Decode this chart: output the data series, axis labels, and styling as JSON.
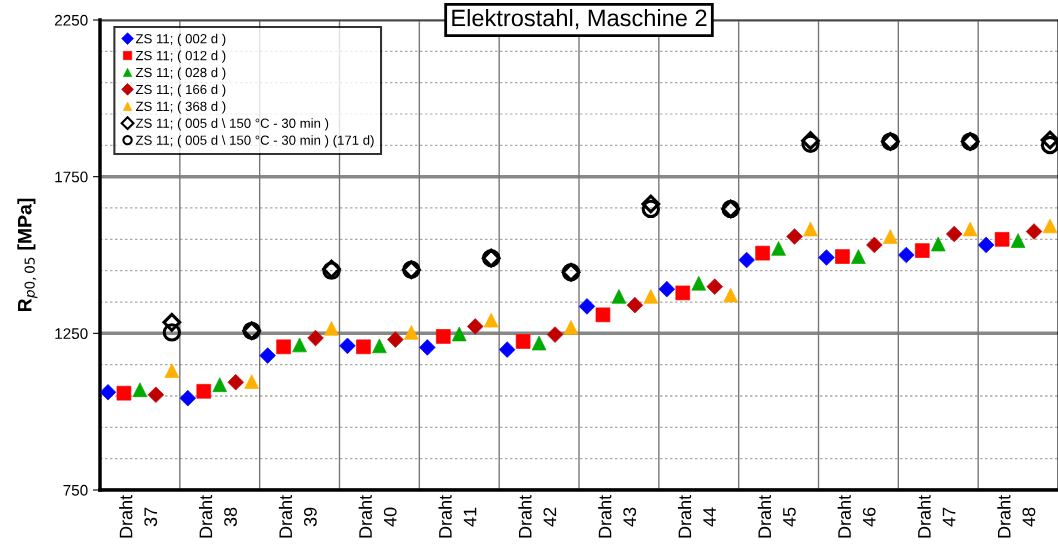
{
  "chart_data": {
    "type": "scatter",
    "title": "Elektrostahl, Maschine 2",
    "ylabel": "R$_{p0,05}$ [MPa]",
    "categories": [
      "Draht\n37",
      "Draht\n38",
      "Draht\n39",
      "Draht\n40",
      "Draht\n41",
      "Draht\n42",
      "Draht\n43",
      "Draht\n44",
      "Draht\n45",
      "Draht\n46",
      "Draht\n47",
      "Draht\n48"
    ],
    "ylim": [
      750,
      2250
    ],
    "yticks": [
      750,
      {
        "value": 850,
        "label": null
      },
      {
        "value": 950,
        "label": null
      },
      {
        "value": 1050,
        "label": null
      },
      {
        "value": 1150,
        "label": null
      },
      1250,
      {
        "value": 1350,
        "label": null
      },
      {
        "value": 1450,
        "label": null
      },
      {
        "value": 1550,
        "label": null
      },
      {
        "value": 1650,
        "label": null
      },
      1750,
      {
        "value": 1850,
        "label": null
      },
      {
        "value": 1950,
        "label": null
      },
      {
        "value": 2050,
        "label": null
      },
      {
        "value": 2150,
        "label": null
      },
      2250
    ],
    "grid": true,
    "legend": "top left",
    "series": [
      {
        "name": "ZS 11; ( 002 d )",
        "color": "#0000ff",
        "marker": "diamond",
        "values": [
          1062,
          1043,
          1179,
          1210,
          1205,
          1198,
          1336,
          1391,
          1484,
          1492,
          1500,
          1532
        ]
      },
      {
        "name": "ZS 11; ( 012 d )",
        "color": "#ff0000",
        "marker": "square",
        "values": [
          1059,
          1065,
          1207,
          1207,
          1240,
          1224,
          1309,
          1379,
          1506,
          1495,
          1514,
          1550
        ]
      },
      {
        "name": "ZS 11; ( 028 d )",
        "color": "#00aa00",
        "marker": "triangle",
        "values": [
          1070,
          1086,
          1213,
          1210,
          1248,
          1219,
          1368,
          1410,
          1521,
          1495,
          1535,
          1546
        ]
      },
      {
        "name": "ZS 11; ( 166 d )",
        "color": "#c00000",
        "marker": "diamond",
        "values": [
          1054,
          1094,
          1235,
          1230,
          1272,
          1246,
          1340,
          1399,
          1559,
          1532,
          1567,
          1575
        ]
      },
      {
        "name": "ZS 11; ( 368 d )",
        "color": "#ffb000",
        "marker": "triangle",
        "values": [
          1131,
          1096,
          1266,
          1253,
          1292,
          1269,
          1368,
          1372,
          1583,
          1559,
          1583,
          1593
        ]
      },
      {
        "name": "ZS 11; ( 005 d \\ 150 °C - 30 min )",
        "color": "#000000",
        "marker": "diamond",
        "values": [
          1285,
          1258,
          1455,
          1453,
          1490,
          1445,
          1663,
          1647,
          1865,
          1862,
          1862,
          1867
        ]
      },
      {
        "name": "ZS 11; ( 005 d \\ 150 °C - 30 min ) (171 d)",
        "color": "#000000",
        "marker": "circle",
        "values": [
          1253,
          1258,
          1450,
          1453,
          1490,
          1445,
          1647,
          1647,
          1855,
          1862,
          1862,
          1851
        ]
      }
    ]
  }
}
